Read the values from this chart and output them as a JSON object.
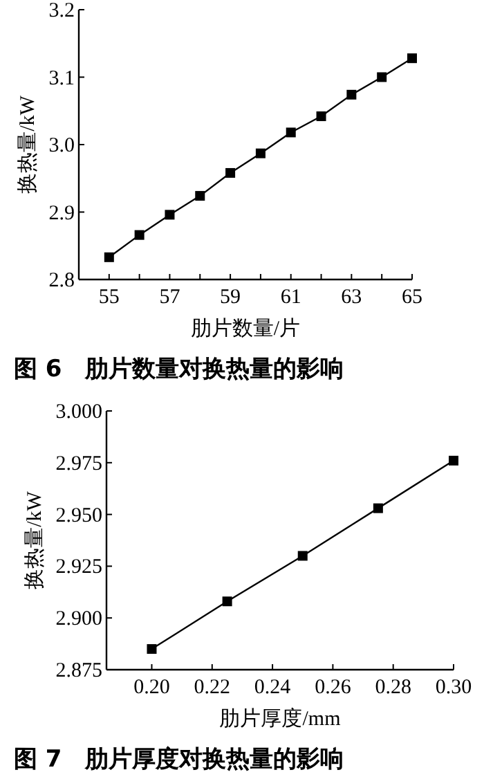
{
  "chart_data": [
    {
      "type": "line",
      "title": "图 6　肋片数量对换热量的影响",
      "xlabel": "肋片数量/片",
      "ylabel": "换热量/kW",
      "marker": "square",
      "line_style": "solid",
      "grid": false,
      "x": [
        55,
        56,
        57,
        58,
        59,
        60,
        61,
        62,
        63,
        64,
        65
      ],
      "series": [
        {
          "color": "#000000",
          "values": [
            2.833,
            2.866,
            2.896,
            2.924,
            2.958,
            2.987,
            3.018,
            3.042,
            3.074,
            3.1,
            3.128
          ]
        }
      ],
      "xlim": [
        54,
        65
      ],
      "ylim": [
        2.8,
        3.2
      ],
      "xticks": [
        55,
        {
          "value": 56,
          "label": null
        },
        57,
        {
          "value": 58,
          "label": null
        },
        59,
        {
          "value": 60,
          "label": null
        },
        61,
        {
          "value": 62,
          "label": null
        },
        63,
        {
          "value": 64,
          "label": null
        },
        65
      ],
      "yticks": [
        {
          "value": 2.8,
          "label": "2.8"
        },
        {
          "value": 2.9,
          "label": "2.9"
        },
        {
          "value": 3.0,
          "label": "3.0"
        },
        {
          "value": 3.1,
          "label": "3.1"
        },
        {
          "value": 3.2,
          "label": "3.2"
        }
      ]
    },
    {
      "type": "line",
      "title": "图 7　肋片厚度对换热量的影响",
      "xlabel": "肋片厚度/mm",
      "ylabel": "换热量/kW",
      "marker": "square",
      "line_style": "solid",
      "grid": false,
      "x": [
        0.2,
        0.225,
        0.25,
        0.275,
        0.3
      ],
      "series": [
        {
          "color": "#000000",
          "values": [
            2.885,
            2.908,
            2.93,
            2.953,
            2.976
          ]
        }
      ],
      "xlim": [
        0.185,
        0.3
      ],
      "ylim": [
        2.875,
        3.0
      ],
      "xticks": [
        {
          "value": 0.2,
          "label": "0.20"
        },
        {
          "value": 0.22,
          "label": "0.22"
        },
        {
          "value": 0.24,
          "label": "0.24"
        },
        {
          "value": 0.26,
          "label": "0.26"
        },
        {
          "value": 0.28,
          "label": "0.28"
        },
        {
          "value": 0.3,
          "label": "0.30"
        }
      ],
      "yticks": [
        {
          "value": 2.875,
          "label": "2.875"
        },
        {
          "value": 2.9,
          "label": "2.900"
        },
        {
          "value": 2.925,
          "label": "2.925"
        },
        {
          "value": 2.95,
          "label": "2.950"
        },
        {
          "value": 2.975,
          "label": "2.975"
        },
        {
          "value": 3.0,
          "label": "3.000"
        }
      ]
    }
  ]
}
